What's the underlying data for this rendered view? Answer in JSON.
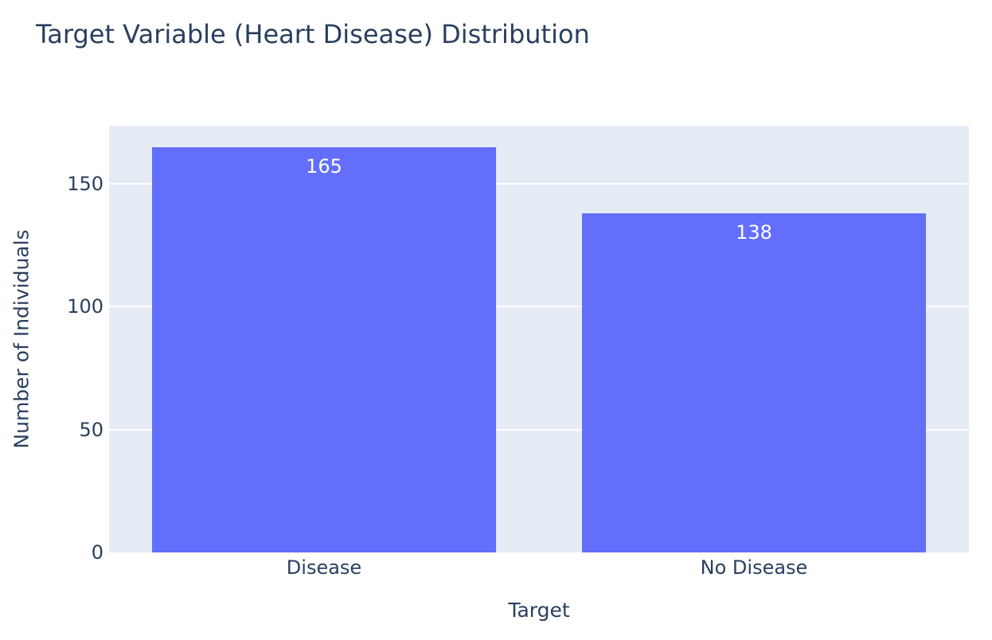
{
  "chart_data": {
    "type": "bar",
    "title": "Target Variable (Heart Disease) Distribution",
    "categories": [
      "Disease",
      "No Disease"
    ],
    "values": [
      165,
      138
    ],
    "bar_labels": [
      "165",
      "138"
    ],
    "xlabel": "Target",
    "ylabel": "Number of Individuals",
    "yticks": [
      0,
      50,
      100,
      150
    ],
    "ylim": [
      0,
      173.7
    ],
    "grid": true,
    "legend": "none",
    "bar_color": "#636EFA",
    "plot_bg_color": "#E5ECF6",
    "grid_color": "#FFFFFF",
    "text_color": "#2A3F5F",
    "bar_label_color": "#FFFFFF",
    "page_bg_color": "#FFFFFF"
  }
}
